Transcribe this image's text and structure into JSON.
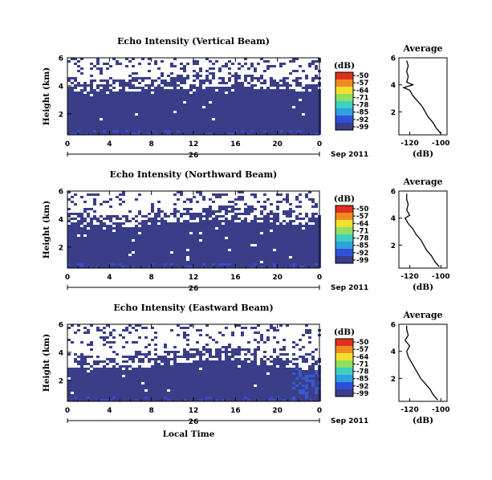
{
  "chart_data": [
    {
      "type": "heatmap",
      "title": "Echo Intensity (Vertical Beam)",
      "ylabel": "Height (km)",
      "x_ticks": [
        "0",
        "4",
        "8",
        "12",
        "16",
        "20",
        "0"
      ],
      "day_label": "26",
      "date_label": "Sep 2011",
      "y_ticks": [
        "6",
        "4",
        "2"
      ],
      "ylim": [
        0.5,
        6
      ],
      "xlim": [
        0,
        24
      ],
      "colorbar": {
        "unit": "(dB)",
        "labels": [
          "-50",
          "-57",
          "-64",
          "-71",
          "-78",
          "-85",
          "-92",
          "-99"
        ]
      },
      "white_above_km": [
        4.0,
        3.9,
        3.9,
        3.8,
        3.8,
        3.9,
        4.0,
        4.0,
        4.1,
        4.1,
        4.2,
        4.2,
        4.2,
        4.3,
        4.3,
        4.3,
        4.3,
        4.2,
        4.2,
        4.1,
        4.1,
        4.0,
        4.0,
        4.0
      ],
      "average_profile": {
        "title": "Average",
        "xlabel": "(dB)",
        "x_ticks": [
          "-120",
          "-100"
        ],
        "xlim": [
          -127,
          -96
        ],
        "y_ticks": [
          "6",
          "4",
          "2"
        ],
        "ylim": [
          0.3,
          6
        ],
        "heights": [
          0.4,
          0.8,
          1.2,
          1.6,
          2.0,
          2.4,
          2.8,
          3.2,
          3.6,
          3.8,
          4.0,
          4.2,
          4.6,
          5.0,
          5.4,
          5.8
        ],
        "values": [
          -100,
          -103,
          -105,
          -108,
          -110,
          -112,
          -115,
          -118,
          -120,
          -124,
          -118,
          -122,
          -121,
          -122,
          -121,
          -122
        ]
      }
    },
    {
      "type": "heatmap",
      "title": "Echo Intensity (Northward Beam)",
      "ylabel": "Height (km)",
      "x_ticks": [
        "0",
        "4",
        "8",
        "12",
        "16",
        "20",
        "0"
      ],
      "day_label": "26",
      "date_label": "Sep 2011",
      "y_ticks": [
        "6",
        "4",
        "2"
      ],
      "ylim": [
        0.5,
        6
      ],
      "xlim": [
        0,
        24
      ],
      "colorbar": {
        "unit": "(dB)",
        "labels": [
          "-50",
          "-57",
          "-64",
          "-71",
          "-78",
          "-85",
          "-92",
          "-99"
        ]
      },
      "white_above_km": [
        3.9,
        3.8,
        3.7,
        3.6,
        3.6,
        3.7,
        3.8,
        3.9,
        4.0,
        4.1,
        4.1,
        4.2,
        4.2,
        4.3,
        4.3,
        4.3,
        4.2,
        4.2,
        4.1,
        4.1,
        4.0,
        4.0,
        3.9,
        3.9
      ],
      "average_profile": {
        "title": "Average",
        "xlabel": "(dB)",
        "x_ticks": [
          "-120",
          "-100"
        ],
        "xlim": [
          -127,
          -96
        ],
        "y_ticks": [
          "6",
          "4",
          "2"
        ],
        "ylim": [
          0.3,
          6
        ],
        "heights": [
          0.4,
          0.8,
          1.2,
          1.6,
          2.0,
          2.4,
          2.8,
          3.2,
          3.6,
          4.0,
          4.2,
          4.6,
          5.0,
          5.4,
          5.8
        ],
        "values": [
          -101,
          -104,
          -106,
          -109,
          -111,
          -113,
          -116,
          -118,
          -121,
          -123,
          -120,
          -122,
          -121,
          -122,
          -122
        ]
      }
    },
    {
      "type": "heatmap",
      "title": "Echo Intensity (Eastward Beam)",
      "ylabel": "Height (km)",
      "x_ticks": [
        "0",
        "4",
        "8",
        "12",
        "16",
        "20",
        "0"
      ],
      "day_label": "26",
      "date_label": "Sep 2011",
      "y_ticks": [
        "6",
        "4",
        "2"
      ],
      "ylim": [
        0.5,
        6
      ],
      "xlim": [
        0,
        24
      ],
      "xlabel": "Local Time",
      "colorbar": {
        "unit": "(dB)",
        "labels": [
          "-50",
          "-57",
          "-64",
          "-71",
          "-78",
          "-85",
          "-92",
          "-99"
        ]
      },
      "white_above_km": [
        3.3,
        3.2,
        3.1,
        3.0,
        3.0,
        3.1,
        3.2,
        3.3,
        3.4,
        3.5,
        3.6,
        3.6,
        3.7,
        3.7,
        3.8,
        3.8,
        3.7,
        3.6,
        3.5,
        3.4,
        3.3,
        3.2,
        3.1,
        3.0
      ],
      "average_profile": {
        "title": "Average",
        "xlabel": "(dB)",
        "x_ticks": [
          "-120",
          "-100"
        ],
        "xlim": [
          -127,
          -96
        ],
        "y_ticks": [
          "6",
          "4",
          "2"
        ],
        "ylim": [
          0.3,
          6
        ],
        "heights": [
          0.4,
          0.8,
          1.2,
          1.6,
          2.0,
          2.4,
          2.8,
          3.2,
          3.6,
          4.0,
          4.4,
          4.8,
          5.2,
          5.6,
          5.9
        ],
        "values": [
          -102,
          -105,
          -107,
          -110,
          -113,
          -115,
          -117,
          -119,
          -121,
          -122,
          -120,
          -123,
          -121,
          -122,
          -122
        ]
      }
    }
  ]
}
